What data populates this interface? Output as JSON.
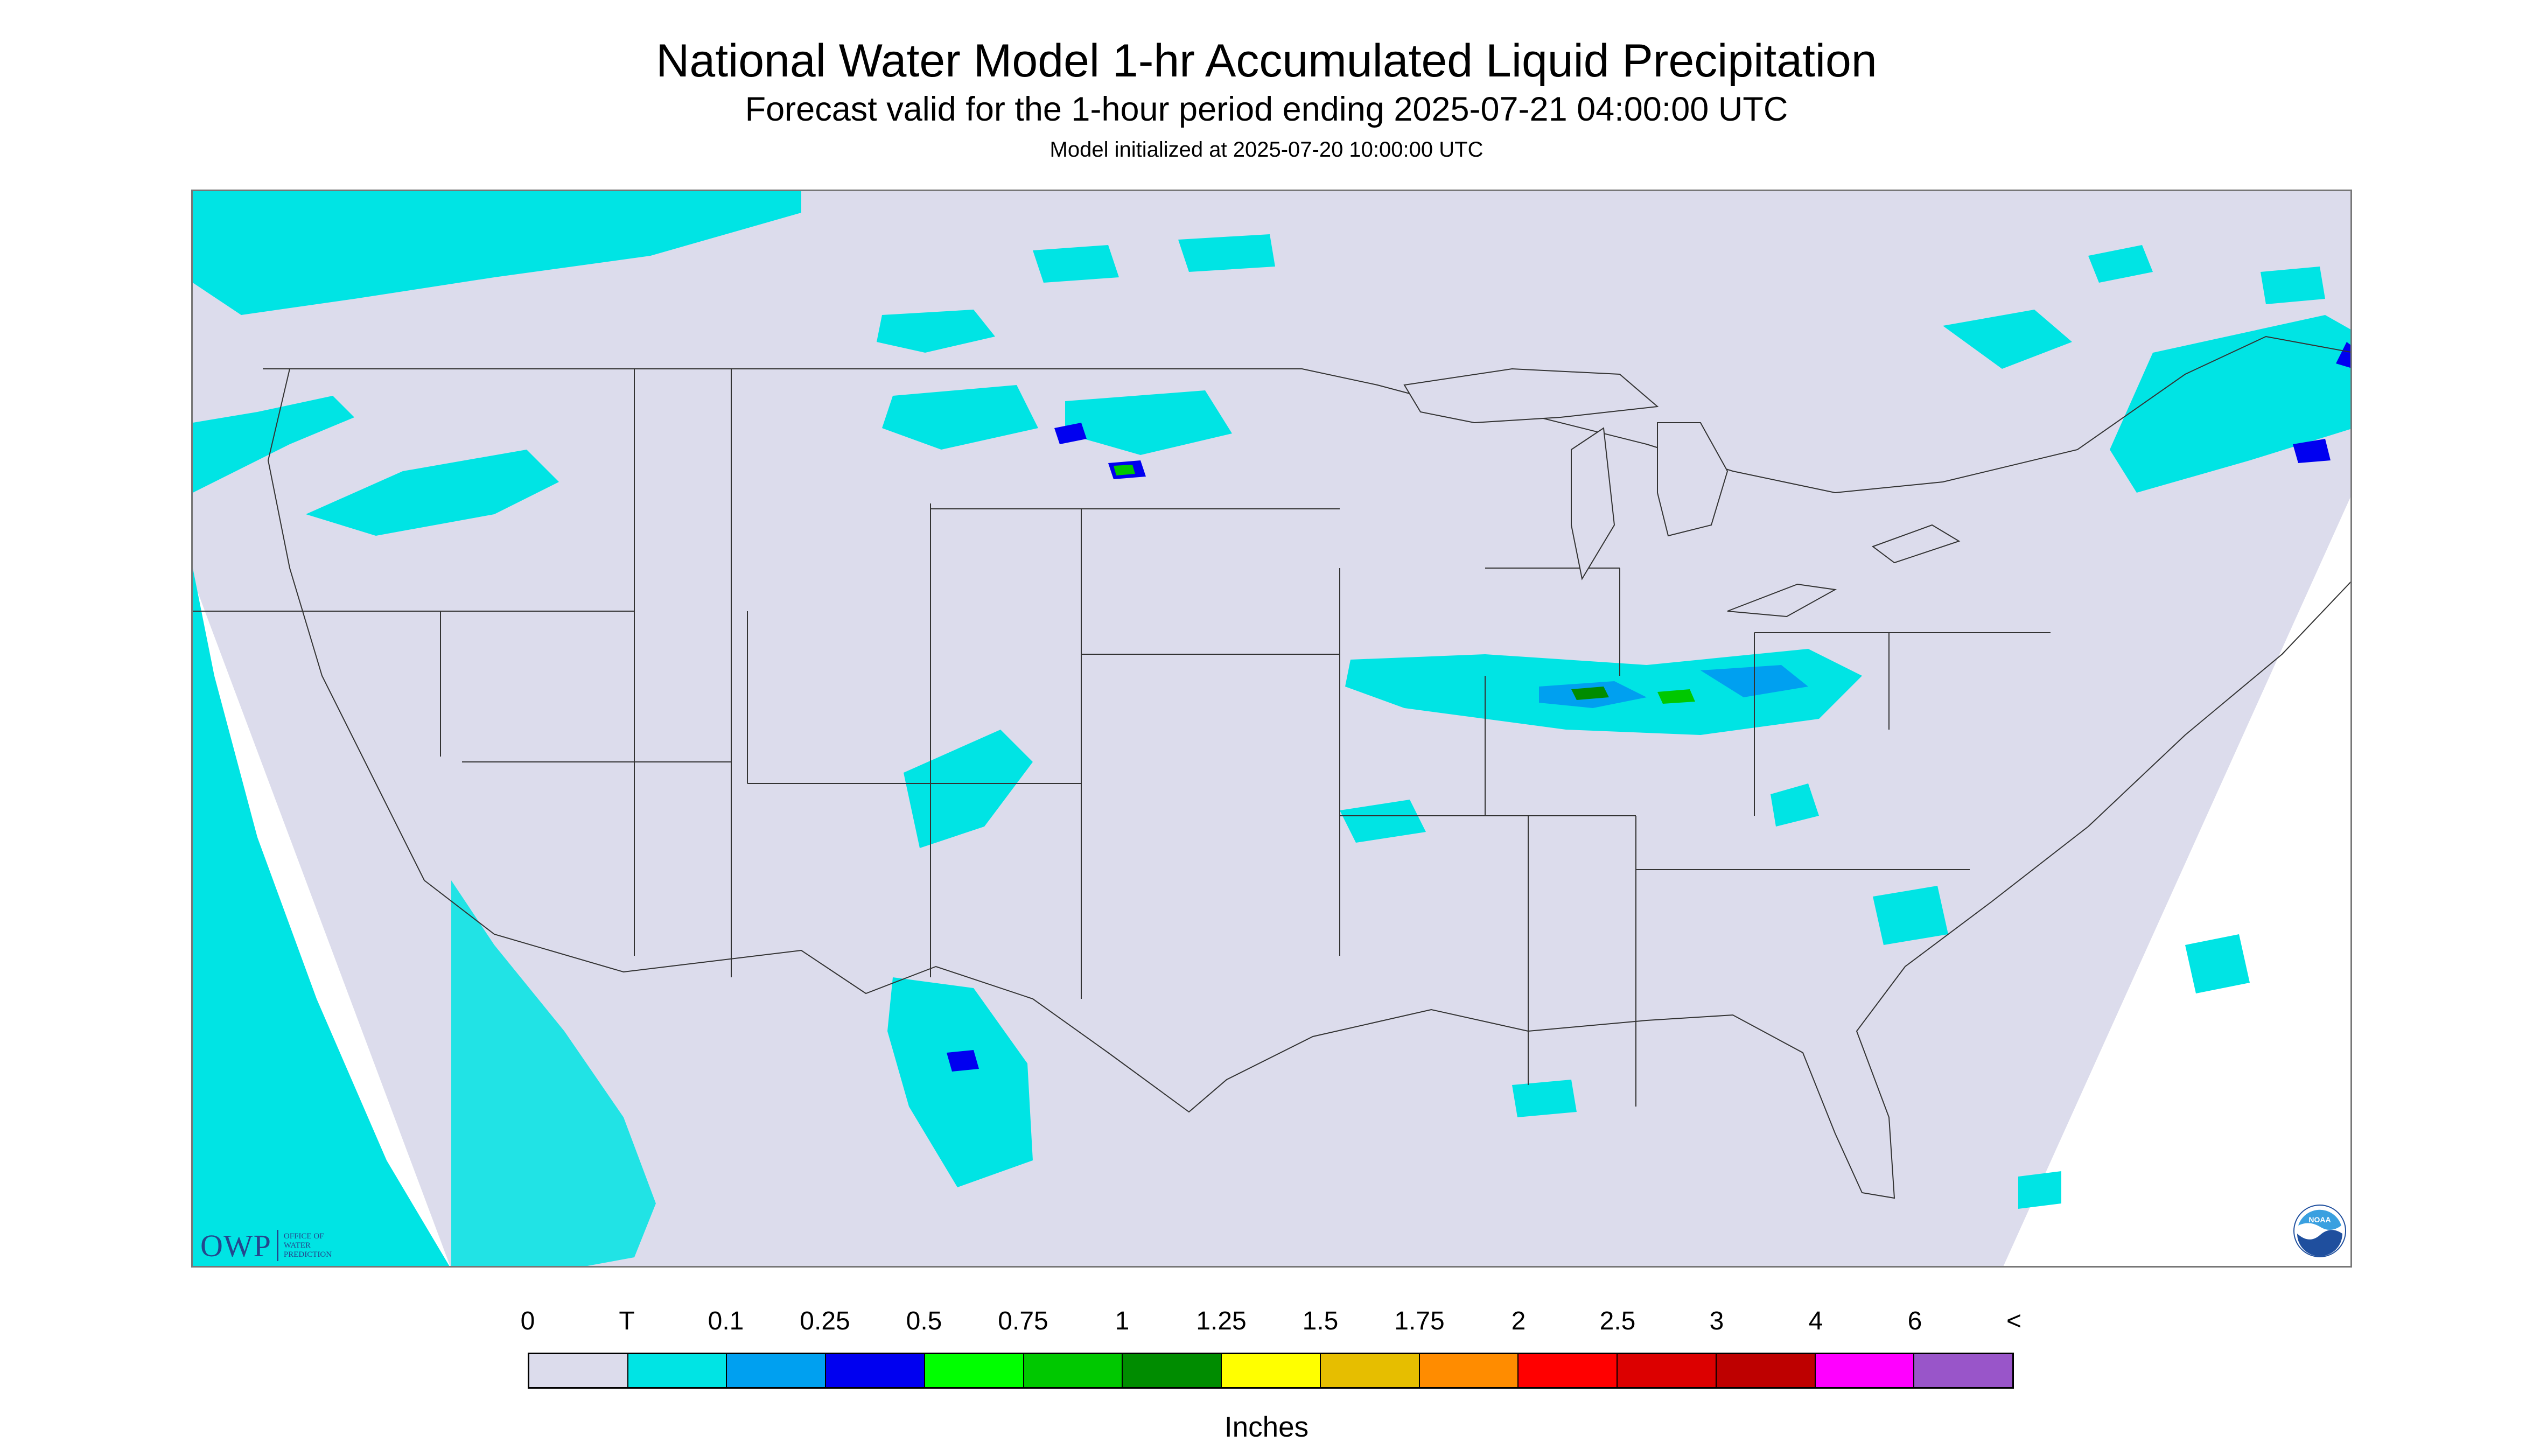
{
  "header": {
    "title": "National Water Model 1-hr Accumulated Liquid Precipitation",
    "subtitle": "Forecast valid for the 1-hour period ending 2025-07-21 04:00:00 UTC",
    "init_line": "Model initialized at 2025-07-20 10:00:00 UTC"
  },
  "map": {
    "background_color": "#dcdcec",
    "outside_domain_color": "#ffffff",
    "border_color": "#333333"
  },
  "logos": {
    "owp": {
      "name": "OWP",
      "sub_line1": "Office of",
      "sub_line2": "Water",
      "sub_line3": "Prediction",
      "color": "#24468e"
    },
    "noaa": {
      "name": "NOAA"
    }
  },
  "legend": {
    "units_label": "Inches",
    "tick_labels": [
      "0",
      "T",
      "0.1",
      "0.25",
      "0.5",
      "0.75",
      "1",
      "1.25",
      "1.5",
      "1.75",
      "2",
      "2.5",
      "3",
      "4",
      "6",
      "<"
    ],
    "colors": [
      "#dcdcec",
      "#00e4e4",
      "#00a0f0",
      "#0000f0",
      "#00ff00",
      "#00c800",
      "#008c00",
      "#ffff00",
      "#e6be00",
      "#ff8c00",
      "#ff0000",
      "#dc0000",
      "#be0000",
      "#ff00ff",
      "#9955c9"
    ]
  }
}
